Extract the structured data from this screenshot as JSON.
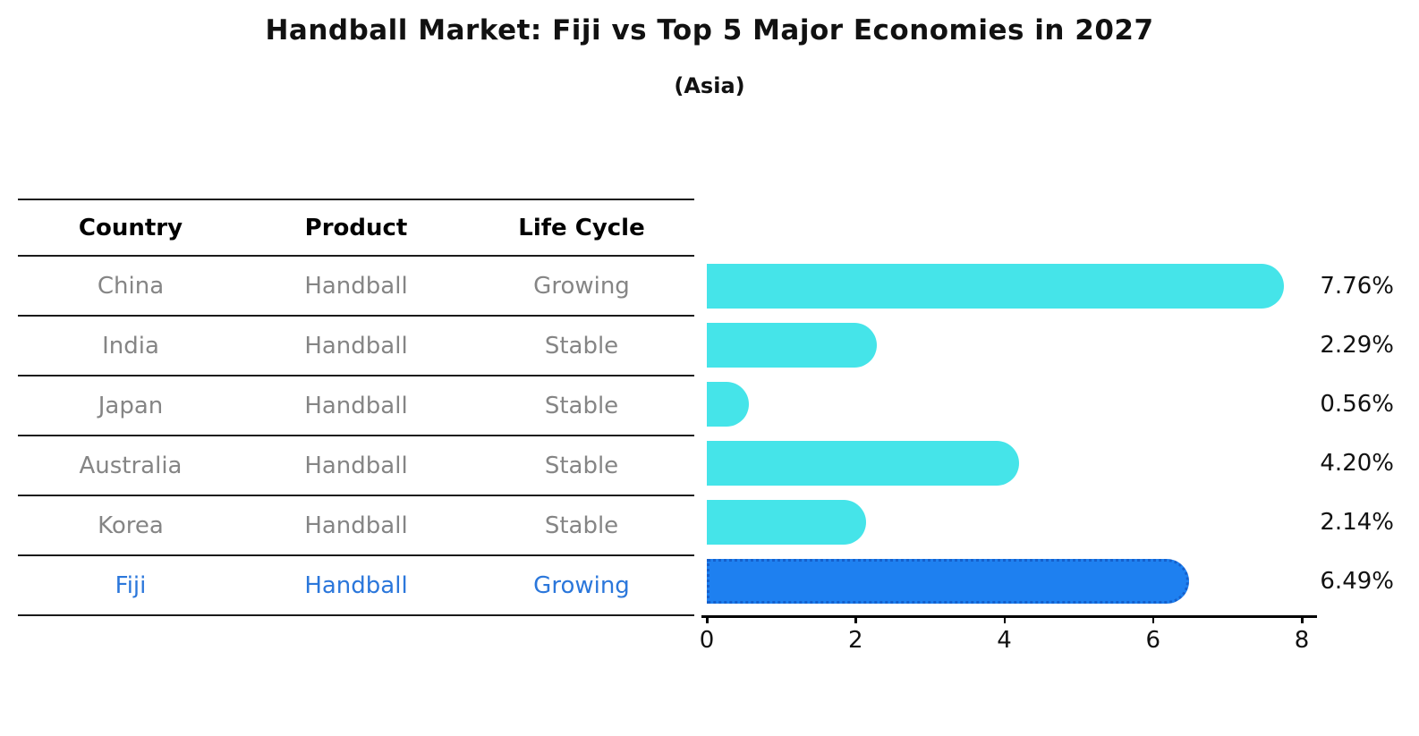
{
  "title": "Handball Market: Fiji vs Top 5 Major Economies in 2027",
  "subtitle": "(Asia)",
  "colors": {
    "bar_default": "#45E4E9",
    "bar_highlight": "#1E80F0",
    "bar_highlight_border": "#1560CC",
    "row_text": "#858585",
    "highlight_text": "#2B77DB",
    "header_text": "#000000"
  },
  "table": {
    "headers": [
      "Country",
      "Product",
      "Life Cycle"
    ],
    "rows": [
      {
        "country": "China",
        "product": "Handball",
        "life_cycle": "Growing",
        "highlight": false
      },
      {
        "country": "India",
        "product": "Handball",
        "life_cycle": "Stable",
        "highlight": false
      },
      {
        "country": "Japan",
        "product": "Handball",
        "life_cycle": "Stable",
        "highlight": false
      },
      {
        "country": "Australia",
        "product": "Handball",
        "life_cycle": "Stable",
        "highlight": false
      },
      {
        "country": "Korea",
        "product": "Handball",
        "life_cycle": "Stable",
        "highlight": false
      },
      {
        "country": "Fiji",
        "product": "Handball",
        "life_cycle": "Growing",
        "highlight": true
      }
    ]
  },
  "chart_data": {
    "type": "bar",
    "orientation": "horizontal",
    "title": "Handball Market: Fiji vs Top 5 Major Economies in 2027",
    "subtitle": "(Asia)",
    "categories": [
      "China",
      "India",
      "Japan",
      "Australia",
      "Korea",
      "Fiji"
    ],
    "values": [
      7.76,
      2.29,
      0.56,
      4.2,
      2.14,
      6.49
    ],
    "value_labels": [
      "7.76%",
      "2.29%",
      "0.56%",
      "4.20%",
      "2.14%",
      "6.49%"
    ],
    "highlight_index": 5,
    "xlabel": "",
    "ylabel": "",
    "xlim": [
      0,
      8
    ],
    "x_ticks": [
      0,
      2,
      4,
      6,
      8
    ],
    "grid": false,
    "legend": false
  }
}
